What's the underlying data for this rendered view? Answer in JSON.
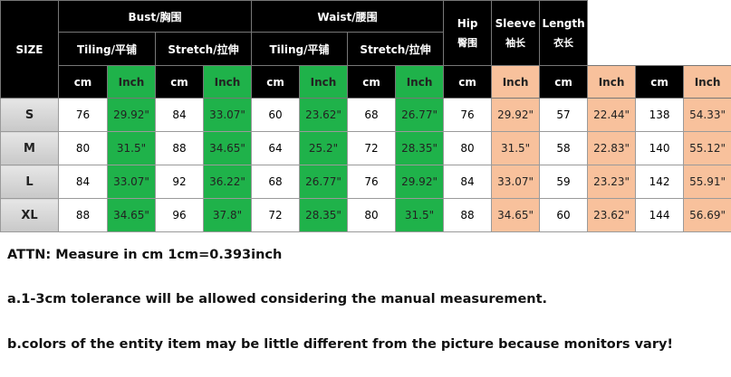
{
  "table": {
    "size_label": "SIZE",
    "groups": [
      {
        "title": "Bust/胸围",
        "subgroups": [
          "Tiling/平铺",
          "Stretch/拉伸"
        ]
      },
      {
        "title": "Waist/腰围",
        "subgroups": [
          "Tiling/平铺",
          "Stretch/拉伸"
        ]
      },
      {
        "title": "Hip",
        "subtitle": "臀围"
      },
      {
        "title": "Sleeve",
        "subtitle": "袖长"
      },
      {
        "title": "Length",
        "subtitle": "衣长"
      }
    ],
    "units": [
      "cm",
      "Inch"
    ],
    "rows": [
      [
        "S",
        76,
        "29.92\"",
        84,
        "33.07\"",
        60,
        "23.62\"",
        68,
        "26.77\"",
        76,
        "29.92\"",
        57,
        "22.44\"",
        138,
        "54.33\""
      ],
      [
        "M",
        80,
        "31.5\"",
        88,
        "34.65\"",
        64,
        "25.2\"",
        72,
        "28.35\"",
        80,
        "31.5\"",
        58,
        "22.83\"",
        140,
        "55.12\""
      ],
      [
        "L",
        84,
        "33.07\"",
        92,
        "36.22\"",
        68,
        "26.77\"",
        76,
        "29.92\"",
        84,
        "33.07\"",
        59,
        "23.23\"",
        142,
        "55.91\""
      ],
      [
        "XL",
        88,
        "34.65\"",
        96,
        "37.8\"",
        72,
        "28.35\"",
        80,
        "31.5\"",
        88,
        "34.65\"",
        60,
        "23.62\"",
        144,
        "56.69\""
      ]
    ]
  },
  "notes": [
    "ATTN: Measure in cm 1cm=0.393inch",
    "a.1-3cm tolerance will be allowed considering the manual measurement.",
    "b.colors of the entity item may be little different from the picture because monitors vary!"
  ]
}
